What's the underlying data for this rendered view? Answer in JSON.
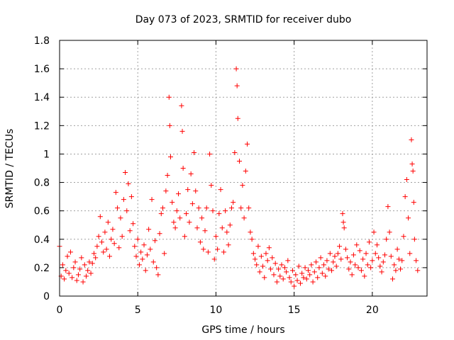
{
  "chart_data": {
    "type": "scatter",
    "title": "Day 073 of 2023, SRMTID for receiver dubo",
    "xlabel": "GPS time / hours",
    "ylabel": "SRMTID / TECUs",
    "xlim": [
      0,
      23.5
    ],
    "ylim": [
      0,
      1.8
    ],
    "xticks": [
      0,
      5,
      10,
      15,
      20
    ],
    "xtick_labels": [
      "0",
      "5",
      "10",
      "15",
      "20"
    ],
    "yticks": [
      0,
      0.2,
      0.4,
      0.6,
      0.8,
      1.0,
      1.2,
      1.4,
      1.6,
      1.8
    ],
    "ytick_labels": [
      "0",
      "0.2",
      "0.4",
      "0.6",
      "0.8",
      "1",
      "1.2",
      "1.4",
      "1.6",
      "1.8"
    ],
    "grid": true,
    "marker": "plus",
    "marker_color": "#ff0000",
    "series": [
      {
        "name": "SRMTID",
        "x": [
          0.0,
          0.1,
          0.2,
          0.3,
          0.4,
          0.5,
          0.6,
          0.7,
          0.8,
          0.9,
          1.0,
          1.1,
          1.2,
          1.3,
          1.4,
          1.5,
          1.6,
          1.7,
          1.8,
          1.9,
          2.0,
          2.1,
          2.2,
          2.3,
          2.4,
          2.5,
          2.6,
          2.7,
          2.8,
          2.9,
          3.0,
          3.1,
          3.2,
          3.3,
          3.4,
          3.5,
          3.6,
          3.7,
          3.8,
          3.9,
          4.0,
          4.1,
          4.2,
          4.3,
          4.4,
          4.5,
          4.6,
          4.7,
          4.8,
          4.9,
          5.0,
          5.1,
          5.2,
          5.3,
          5.4,
          5.5,
          5.6,
          5.7,
          5.8,
          5.9,
          6.0,
          6.1,
          6.2,
          6.3,
          6.4,
          6.5,
          6.6,
          6.7,
          6.8,
          6.9,
          7.0,
          7.05,
          7.1,
          7.2,
          7.3,
          7.4,
          7.5,
          7.6,
          7.7,
          7.8,
          7.85,
          7.9,
          8.0,
          8.1,
          8.2,
          8.3,
          8.4,
          8.5,
          8.6,
          8.7,
          8.8,
          8.9,
          9.0,
          9.1,
          9.2,
          9.3,
          9.4,
          9.5,
          9.6,
          9.7,
          9.8,
          9.9,
          10.0,
          10.1,
          10.2,
          10.3,
          10.4,
          10.5,
          10.6,
          10.7,
          10.8,
          10.9,
          11.0,
          11.1,
          11.2,
          11.3,
          11.35,
          11.4,
          11.5,
          11.6,
          11.7,
          11.8,
          11.9,
          12.0,
          12.1,
          12.2,
          12.3,
          12.4,
          12.5,
          12.6,
          12.7,
          12.8,
          12.9,
          13.0,
          13.1,
          13.2,
          13.3,
          13.4,
          13.5,
          13.6,
          13.7,
          13.8,
          13.9,
          14.0,
          14.1,
          14.2,
          14.3,
          14.4,
          14.5,
          14.6,
          14.7,
          14.8,
          14.9,
          15.0,
          15.1,
          15.2,
          15.3,
          15.4,
          15.5,
          15.6,
          15.7,
          15.8,
          15.9,
          16.0,
          16.1,
          16.2,
          16.3,
          16.4,
          16.5,
          16.6,
          16.7,
          16.8,
          16.9,
          17.0,
          17.1,
          17.2,
          17.3,
          17.4,
          17.5,
          17.6,
          17.7,
          17.8,
          17.9,
          18.0,
          18.1,
          18.15,
          18.2,
          18.3,
          18.4,
          18.5,
          18.6,
          18.7,
          18.8,
          18.9,
          19.0,
          19.1,
          19.2,
          19.3,
          19.4,
          19.5,
          19.6,
          19.7,
          19.8,
          19.9,
          20.0,
          20.1,
          20.2,
          20.3,
          20.4,
          20.5,
          20.6,
          20.7,
          20.8,
          20.9,
          21.0,
          21.1,
          21.2,
          21.3,
          21.4,
          21.5,
          21.6,
          21.7,
          21.8,
          21.9,
          22.0,
          22.1,
          22.2,
          22.3,
          22.4,
          22.5,
          22.55,
          22.6,
          22.65,
          22.7,
          22.8,
          22.9
        ],
        "y": [
          0.35,
          0.14,
          0.22,
          0.12,
          0.18,
          0.28,
          0.16,
          0.31,
          0.13,
          0.2,
          0.24,
          0.11,
          0.15,
          0.19,
          0.27,
          0.1,
          0.22,
          0.14,
          0.18,
          0.24,
          0.16,
          0.23,
          0.3,
          0.27,
          0.35,
          0.42,
          0.56,
          0.38,
          0.31,
          0.45,
          0.33,
          0.52,
          0.28,
          0.4,
          0.47,
          0.37,
          0.73,
          0.62,
          0.34,
          0.55,
          0.42,
          0.68,
          0.87,
          0.6,
          0.79,
          0.46,
          0.7,
          0.51,
          0.35,
          0.28,
          0.4,
          0.22,
          0.31,
          0.26,
          0.36,
          0.18,
          0.29,
          0.47,
          0.33,
          0.68,
          0.24,
          0.39,
          0.2,
          0.15,
          0.44,
          0.58,
          0.62,
          0.3,
          0.74,
          0.85,
          1.4,
          1.2,
          0.98,
          0.66,
          0.52,
          0.48,
          0.6,
          0.72,
          0.55,
          1.34,
          1.16,
          0.9,
          0.42,
          0.58,
          0.75,
          0.52,
          0.86,
          0.65,
          1.01,
          0.74,
          0.48,
          0.62,
          0.38,
          0.55,
          0.33,
          0.46,
          0.62,
          0.31,
          1.0,
          0.78,
          0.6,
          0.26,
          0.42,
          0.33,
          0.58,
          0.75,
          0.48,
          0.31,
          0.6,
          0.45,
          0.36,
          0.5,
          0.62,
          0.66,
          1.01,
          1.6,
          1.48,
          1.25,
          0.95,
          0.62,
          0.78,
          0.55,
          0.88,
          1.07,
          0.62,
          0.45,
          0.4,
          0.3,
          0.26,
          0.22,
          0.35,
          0.17,
          0.28,
          0.21,
          0.13,
          0.3,
          0.25,
          0.34,
          0.19,
          0.27,
          0.15,
          0.23,
          0.1,
          0.19,
          0.14,
          0.22,
          0.12,
          0.2,
          0.17,
          0.25,
          0.13,
          0.1,
          0.18,
          0.07,
          0.15,
          0.11,
          0.21,
          0.09,
          0.16,
          0.13,
          0.2,
          0.12,
          0.18,
          0.15,
          0.22,
          0.1,
          0.17,
          0.24,
          0.13,
          0.2,
          0.27,
          0.16,
          0.22,
          0.14,
          0.25,
          0.19,
          0.3,
          0.18,
          0.24,
          0.28,
          0.21,
          0.3,
          0.35,
          0.26,
          0.58,
          0.52,
          0.48,
          0.33,
          0.27,
          0.19,
          0.24,
          0.15,
          0.29,
          0.22,
          0.36,
          0.2,
          0.32,
          0.18,
          0.26,
          0.14,
          0.3,
          0.22,
          0.38,
          0.2,
          0.25,
          0.45,
          0.3,
          0.36,
          0.27,
          0.21,
          0.17,
          0.24,
          0.29,
          0.4,
          0.63,
          0.45,
          0.28,
          0.12,
          0.22,
          0.18,
          0.33,
          0.26,
          0.19,
          0.25,
          0.42,
          0.7,
          0.82,
          0.55,
          0.3,
          1.1,
          0.93,
          0.88,
          0.66,
          0.4,
          0.25,
          0.18
        ]
      }
    ]
  }
}
